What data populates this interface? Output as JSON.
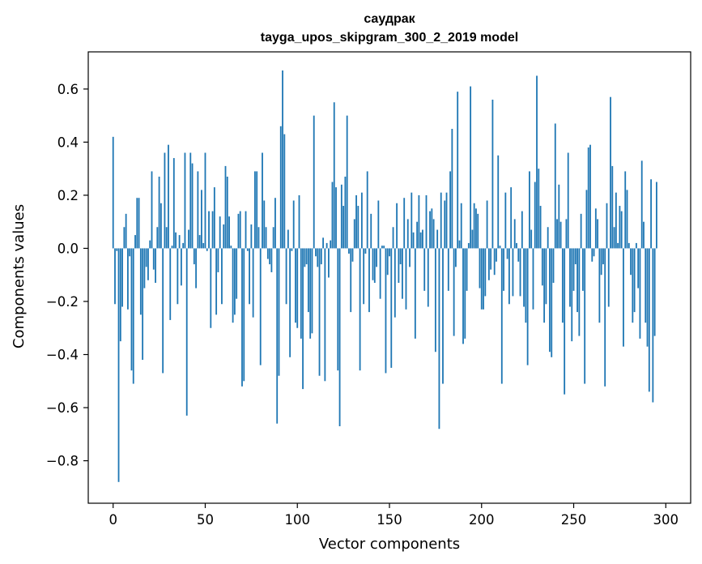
{
  "chart_data": {
    "type": "bar",
    "title": "саудрак",
    "subtitle": "tayga_upos_skipgram_300_2_2019 model",
    "xlabel": "Vector components",
    "ylabel": "Components values",
    "xlim": [
      -13.5,
      313.5
    ],
    "ylim": [
      -0.96,
      0.74
    ],
    "xticks": [
      0,
      50,
      100,
      150,
      200,
      250,
      300
    ],
    "xtick_labels": [
      "0",
      "50",
      "100",
      "150",
      "200",
      "250",
      "300"
    ],
    "yticks": [
      -0.8,
      -0.6,
      -0.4,
      -0.2,
      0.0,
      0.2,
      0.4,
      0.6
    ],
    "ytick_labels": [
      "−0.8",
      "−0.6",
      "−0.4",
      "−0.2",
      "0.0",
      "0.2",
      "0.4",
      "0.6"
    ],
    "color": "#1f77b4",
    "x_start": 0,
    "values": [
      0.42,
      -0.21,
      -0.01,
      -0.88,
      -0.35,
      -0.22,
      0.08,
      0.13,
      -0.23,
      -0.03,
      -0.46,
      -0.51,
      0.05,
      0.19,
      0.19,
      -0.25,
      -0.42,
      -0.15,
      -0.07,
      -0.12,
      0.03,
      0.29,
      -0.08,
      -0.13,
      0.08,
      0.27,
      0.17,
      -0.47,
      0.36,
      0.08,
      0.39,
      -0.27,
      0.01,
      0.34,
      0.06,
      -0.21,
      0.05,
      -0.14,
      0.02,
      0.36,
      -0.63,
      0.07,
      0.36,
      0.32,
      -0.06,
      -0.15,
      0.29,
      0.05,
      0.22,
      0.02,
      0.36,
      -0.01,
      0.14,
      -0.3,
      0.14,
      0.23,
      -0.25,
      -0.09,
      0.12,
      -0.21,
      0.09,
      0.31,
      0.27,
      0.12,
      0.01,
      -0.28,
      -0.25,
      -0.19,
      0.13,
      0.14,
      -0.52,
      -0.5,
      0.14,
      -0.01,
      -0.21,
      0.09,
      -0.26,
      0.29,
      0.29,
      0.08,
      -0.44,
      0.36,
      0.18,
      0.08,
      -0.04,
      -0.06,
      -0.09,
      0.08,
      0.19,
      -0.66,
      -0.48,
      0.46,
      0.67,
      0.43,
      -0.21,
      0.07,
      -0.41,
      -0.01,
      0.18,
      -0.28,
      -0.3,
      0.2,
      -0.34,
      -0.53,
      -0.07,
      -0.06,
      -0.24,
      -0.34,
      -0.32,
      0.5,
      -0.03,
      -0.07,
      -0.48,
      -0.06,
      0.04,
      -0.5,
      0.02,
      -0.11,
      0.03,
      0.25,
      0.55,
      0.23,
      -0.46,
      -0.67,
      0.24,
      0.16,
      0.27,
      0.5,
      -0.02,
      -0.24,
      -0.05,
      0.11,
      0.2,
      0.16,
      -0.46,
      0.21,
      -0.21,
      -0.02,
      0.29,
      -0.24,
      0.13,
      -0.12,
      -0.13,
      -0.07,
      0.18,
      -0.19,
      0.01,
      0.01,
      -0.47,
      -0.1,
      -0.03,
      -0.45,
      0.08,
      -0.26,
      0.17,
      -0.13,
      -0.06,
      -0.19,
      0.19,
      -0.23,
      0.11,
      -0.07,
      0.21,
      0.06,
      -0.34,
      0.1,
      0.2,
      0.06,
      0.07,
      -0.16,
      0.2,
      -0.22,
      0.14,
      0.15,
      0.11,
      -0.39,
      0.07,
      -0.68,
      0.21,
      -0.51,
      0.18,
      0.21,
      -0.16,
      0.29,
      0.45,
      -0.33,
      -0.07,
      0.59,
      0.03,
      0.17,
      -0.36,
      -0.34,
      -0.16,
      0.02,
      0.61,
      0.07,
      0.17,
      0.15,
      0.13,
      -0.15,
      -0.23,
      -0.23,
      -0.18,
      0.18,
      -0.12,
      -0.08,
      0.56,
      -0.1,
      -0.05,
      0.35,
      0.01,
      -0.51,
      -0.16,
      0.21,
      -0.04,
      -0.21,
      0.23,
      -0.18,
      0.11,
      0.02,
      -0.05,
      -0.18,
      0.14,
      -0.22,
      -0.28,
      -0.44,
      0.29,
      0.07,
      -0.23,
      0.25,
      0.65,
      0.3,
      0.16,
      -0.14,
      -0.28,
      -0.21,
      0.08,
      -0.39,
      -0.41,
      -0.13,
      0.47,
      0.11,
      0.24,
      0.1,
      -0.28,
      -0.55,
      0.11,
      0.36,
      -0.22,
      -0.35,
      -0.16,
      -0.06,
      -0.24,
      -0.33,
      0.13,
      -0.16,
      -0.51,
      0.22,
      0.38,
      0.39,
      -0.05,
      -0.03,
      0.15,
      0.11,
      -0.28,
      -0.1,
      -0.06,
      -0.52,
      0.17,
      -0.22,
      0.57,
      0.31,
      0.08,
      0.21,
      0.02,
      0.16,
      0.14,
      -0.37,
      0.29,
      0.22,
      0.02,
      -0.1,
      -0.28,
      -0.24,
      0.02,
      -0.15,
      -0.34,
      0.33,
      0.1,
      -0.28,
      -0.37,
      -0.54,
      0.26,
      -0.58,
      -0.33,
      0.25
    ]
  }
}
